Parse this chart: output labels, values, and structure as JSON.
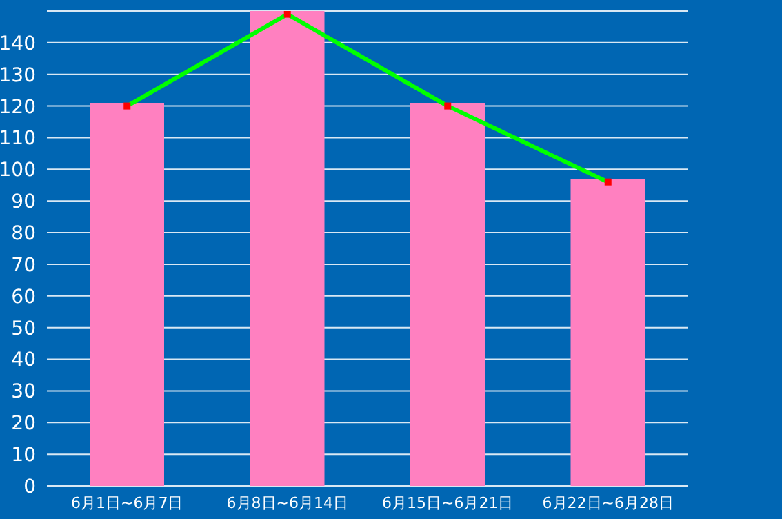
{
  "chart_data": {
    "type": "bar",
    "categories": [
      "6月1日~6月7日",
      "6月8日~6月14日",
      "6月15日~6月21日",
      "6月22日~6月28日"
    ],
    "series": [
      {
        "color": "#ff80c0",
        "values": [
          121,
          150,
          121,
          97
        ]
      },
      {
        "type": "line",
        "color": "#00ff00",
        "values": [
          120,
          149,
          120,
          96
        ],
        "marker": "square"
      }
    ],
    "ylim": [
      0,
      150
    ],
    "yticks": [
      0,
      10,
      20,
      30,
      40,
      50,
      60,
      70,
      80,
      90,
      100,
      110,
      120,
      130,
      140,
      {
        "value": 150,
        "label": null
      }
    ],
    "grid": "y"
  }
}
